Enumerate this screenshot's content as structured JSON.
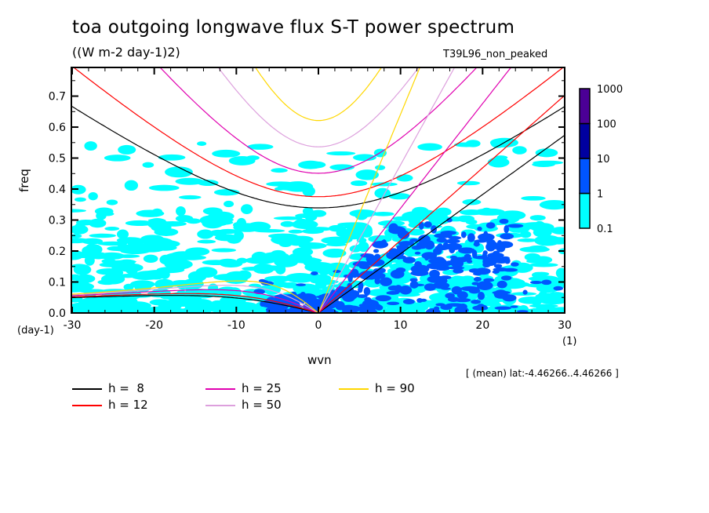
{
  "chart_data": {
    "type": "heatmap",
    "title": "toa outgoing longwave flux S-T power spectrum",
    "subtitle": "((W m-2 day-1)2)",
    "run_label": "T39L96_non_peaked",
    "xlabel": "wvn",
    "xunit": "(1)",
    "ylabel": "freq",
    "yunit": "(day-1)",
    "xlim": [
      -30,
      30
    ],
    "ylim": [
      0.0,
      0.79
    ],
    "xticks": [
      -30,
      -20,
      -10,
      0,
      10,
      20,
      30
    ],
    "xtick_labels": [
      "-30",
      "-20",
      "-10",
      "0",
      "10",
      "20",
      "30"
    ],
    "yticks": [
      0.0,
      0.1,
      0.2,
      0.3,
      0.4,
      0.5,
      0.6,
      0.7
    ],
    "ytick_labels": [
      "0.0",
      "0.1",
      "0.2",
      "0.3",
      "0.4",
      "0.5",
      "0.6",
      "0.7"
    ],
    "colorbar": {
      "scale": "log",
      "levels": [
        0.1,
        1,
        10,
        100,
        1000
      ],
      "level_labels": [
        "0.1",
        "1",
        "10",
        "100",
        "1000"
      ],
      "colors": [
        "#00ffff",
        "#0055ff",
        "#0000a0",
        "#4b0096"
      ]
    },
    "annotation": "[ (mean) lat:-4.46266..4.46266 ]",
    "dispersion_curves": [
      {
        "label": "h =  8",
        "h": 8,
        "color": "#000000"
      },
      {
        "label": "h = 12",
        "h": 12,
        "color": "#ff0000"
      },
      {
        "label": "h = 25",
        "h": 25,
        "color": "#e000b0"
      },
      {
        "label": "h = 50",
        "h": 50,
        "color": "#dda0dd"
      },
      {
        "label": "h = 90",
        "h": 90,
        "color": "#ffd700"
      }
    ],
    "grid": false,
    "legend_position": "bottom-left"
  }
}
